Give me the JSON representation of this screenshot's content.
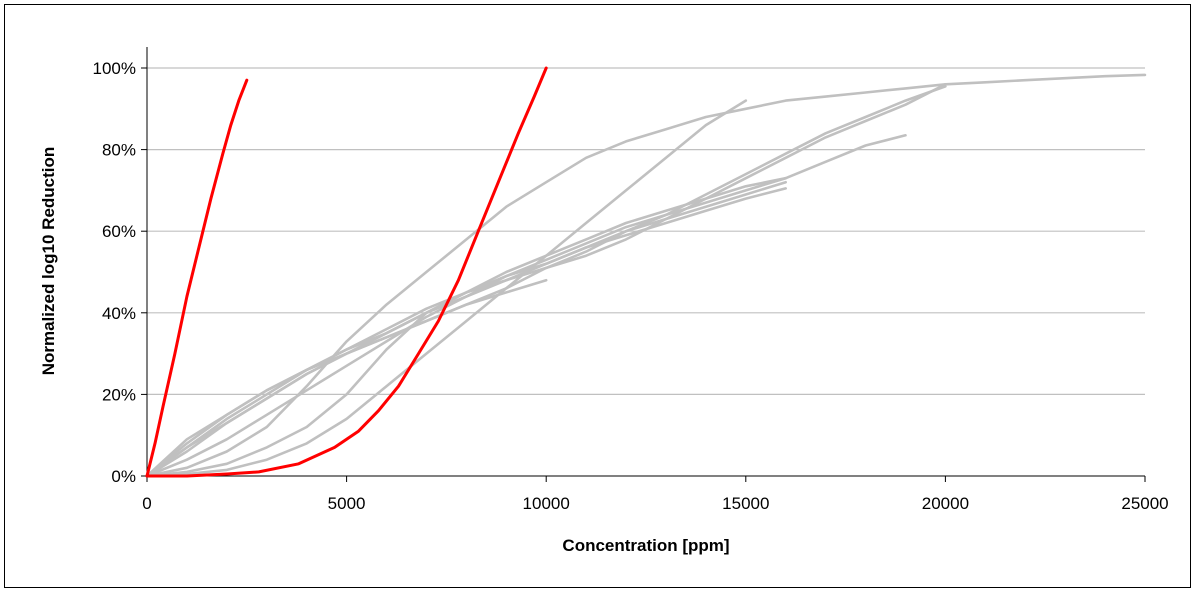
{
  "chart_data": {
    "type": "line",
    "title": "",
    "xlabel": "Concentration [ppm]",
    "ylabel": "Normalized log10 Reduction",
    "xlim": [
      0,
      25000
    ],
    "ylim": [
      0,
      100
    ],
    "x_ticks": [
      0,
      5000,
      10000,
      15000,
      20000,
      25000
    ],
    "x_tick_labels": [
      "0",
      "5000",
      "10000",
      "15000",
      "20000",
      "25000"
    ],
    "y_ticks": [
      0,
      20,
      40,
      60,
      80,
      100
    ],
    "y_tick_labels": [
      "0%",
      "20%",
      "40%",
      "60%",
      "80%",
      "100%"
    ],
    "grid": "horizontal",
    "legend": "none",
    "colors": {
      "highlight": "#ff0000",
      "background_series": "#c0c0c0",
      "grid": "#c0c0c0"
    },
    "series": [
      {
        "color": "#ff0000",
        "x": [
          0,
          200,
          400,
          700,
          1000,
          1300,
          1600,
          1900,
          2100,
          2300,
          2500
        ],
        "y": [
          0,
          8,
          17,
          30,
          44,
          56,
          68,
          79,
          86,
          92,
          97
        ]
      },
      {
        "color": "#ff0000",
        "x": [
          0,
          1000,
          2000,
          2800,
          3800,
          4700,
          5300,
          5800,
          6300,
          6800,
          7300,
          7800,
          8300,
          8800,
          9300,
          9700,
          10000
        ],
        "y": [
          0,
          0,
          0.5,
          1,
          3,
          7,
          11,
          16,
          22,
          30,
          38,
          48,
          60,
          72,
          84,
          93,
          100
        ]
      },
      {
        "color": "#c0c0c0",
        "x": [
          0,
          1000,
          2000,
          3000,
          4000,
          5000,
          6000,
          7000,
          8000,
          9000,
          10000,
          11000,
          12000,
          13000,
          14000,
          15000,
          16000,
          17000,
          18000,
          19000,
          20000,
          21000,
          22000,
          23000,
          24000,
          25000
        ],
        "y": [
          0,
          2,
          6,
          12,
          22,
          33,
          42,
          50,
          58,
          66,
          72,
          78,
          82,
          85,
          88,
          90,
          92,
          93,
          94,
          95,
          96,
          96.5,
          97,
          97.5,
          98,
          98.3
        ]
      },
      {
        "color": "#c0c0c0",
        "x": [
          0,
          1000,
          2000,
          3000,
          4000,
          5000,
          6000,
          7000,
          8000,
          9000,
          10000,
          11000,
          12000,
          13000,
          14000,
          15000,
          16000,
          17000,
          18000,
          19000,
          20000
        ],
        "y": [
          0,
          9,
          15,
          21,
          26,
          30,
          34,
          38,
          42,
          46,
          51,
          55,
          60,
          64,
          69,
          74,
          79,
          84,
          88,
          92,
          95.5
        ]
      },
      {
        "color": "#c0c0c0",
        "x": [
          0,
          1000,
          2000,
          3000,
          4000,
          5000,
          6000,
          7000,
          8000,
          9000,
          10000,
          11000,
          12000,
          13000,
          14000,
          15000,
          16000,
          17000,
          18000,
          19000,
          20000
        ],
        "y": [
          0,
          6,
          13,
          19,
          25,
          30,
          35,
          40,
          45,
          48,
          51,
          54,
          58,
          63,
          68,
          73,
          78,
          83,
          87,
          91,
          96
        ]
      },
      {
        "color": "#c0c0c0",
        "x": [
          0,
          1000,
          2000,
          3000,
          4000,
          5000,
          6000,
          7000,
          8000,
          9000,
          10000,
          11000,
          12000,
          13000,
          14000,
          15000,
          16000
        ],
        "y": [
          0,
          8,
          15,
          21,
          26,
          31,
          35,
          40,
          44,
          48,
          52,
          56,
          60,
          63,
          66,
          69,
          72
        ]
      },
      {
        "color": "#c0c0c0",
        "x": [
          0,
          1000,
          2000,
          3000,
          4000,
          5000,
          6000,
          7000,
          8000,
          9000,
          10000,
          11000,
          12000,
          13000,
          14000,
          15000,
          16000
        ],
        "y": [
          0,
          7,
          14,
          20,
          26,
          31,
          36,
          41,
          45,
          49,
          52,
          56,
          59,
          62,
          65,
          68,
          70.5
        ]
      },
      {
        "color": "#c0c0c0",
        "x": [
          0,
          1000,
          2000,
          3000,
          4000,
          5000,
          6000,
          7000,
          8000,
          9000,
          10000,
          11000,
          12000,
          13000,
          14000,
          15000,
          16000,
          17000,
          18000,
          19000
        ],
        "y": [
          0,
          4,
          9,
          15,
          21,
          27,
          33,
          39,
          44,
          49,
          53,
          57,
          61,
          64,
          67,
          70,
          73,
          77,
          81,
          83.5
        ]
      },
      {
        "color": "#c0c0c0",
        "x": [
          0,
          1000,
          2000,
          3000,
          4000,
          5000,
          6000,
          7000,
          8000,
          9000,
          10000
        ],
        "y": [
          0,
          7,
          13,
          19,
          25,
          30,
          34,
          38,
          42,
          45,
          48
        ]
      },
      {
        "color": "#c0c0c0",
        "x": [
          0,
          1000,
          2000,
          3000,
          4000,
          5000,
          6000,
          7000,
          8000,
          9000,
          10000,
          11000,
          12000,
          13000,
          14000,
          15000,
          16000
        ],
        "y": [
          0,
          1,
          3,
          7,
          12,
          20,
          31,
          40,
          45,
          50,
          54,
          58,
          62,
          65,
          68,
          71,
          73
        ]
      },
      {
        "color": "#c0c0c0",
        "x": [
          0,
          1000,
          2000,
          3000,
          4000,
          5000,
          6000,
          7000,
          8000,
          9000,
          10000,
          11000,
          12000,
          13000,
          14000,
          15000
        ],
        "y": [
          0,
          0.5,
          1.5,
          4,
          8,
          14,
          22,
          30,
          38,
          46,
          54,
          62,
          70,
          78,
          86,
          92
        ]
      }
    ]
  }
}
